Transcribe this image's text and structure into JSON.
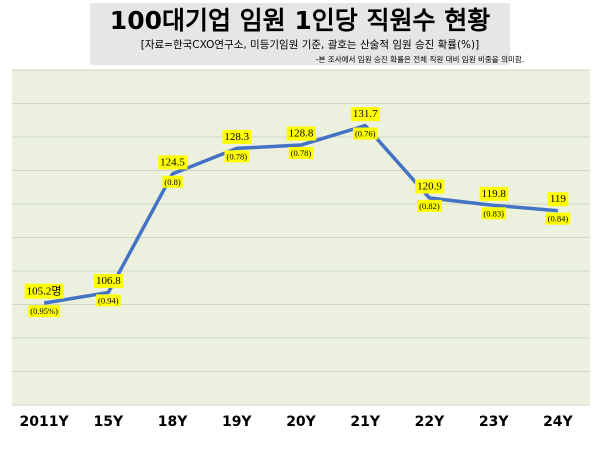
{
  "chart_data": {
    "type": "line",
    "title": "100대기업 임원 1인당 직원수 현황",
    "subtitle": "[자료=한국CXO연구소, 미등기임원 기준, 괄호는 산술적 임원 승진 확률(%)]",
    "note": "-본 조사에서 임원 승진 확률은 전체 직원 대비 임원 비중을 의미함.",
    "categories": [
      "2011Y",
      "15Y",
      "18Y",
      "19Y",
      "20Y",
      "21Y",
      "22Y",
      "23Y",
      "24Y"
    ],
    "values": [
      105.2,
      106.8,
      124.5,
      128.3,
      128.8,
      131.7,
      120.9,
      119.8,
      119
    ],
    "value_labels": [
      "105.2명",
      "106.8",
      "124.5",
      "128.3",
      "128.8",
      "131.7",
      "120.9",
      "119.8",
      "119"
    ],
    "rates": [
      0.95,
      0.94,
      0.8,
      0.78,
      0.78,
      0.76,
      0.82,
      0.83,
      0.84
    ],
    "rate_labels": [
      "(0.95%)",
      "(0.94)",
      "(0.8)",
      "(0.78)",
      "(0.78)",
      "(0.76)",
      "(0.82)",
      "(0.83)",
      "(0.84)"
    ],
    "color": "#4472c4",
    "ylim": [
      90,
      140
    ],
    "yticks": [
      90,
      95,
      100,
      105,
      110,
      115,
      120,
      125,
      130,
      135,
      140
    ],
    "grid": true
  }
}
